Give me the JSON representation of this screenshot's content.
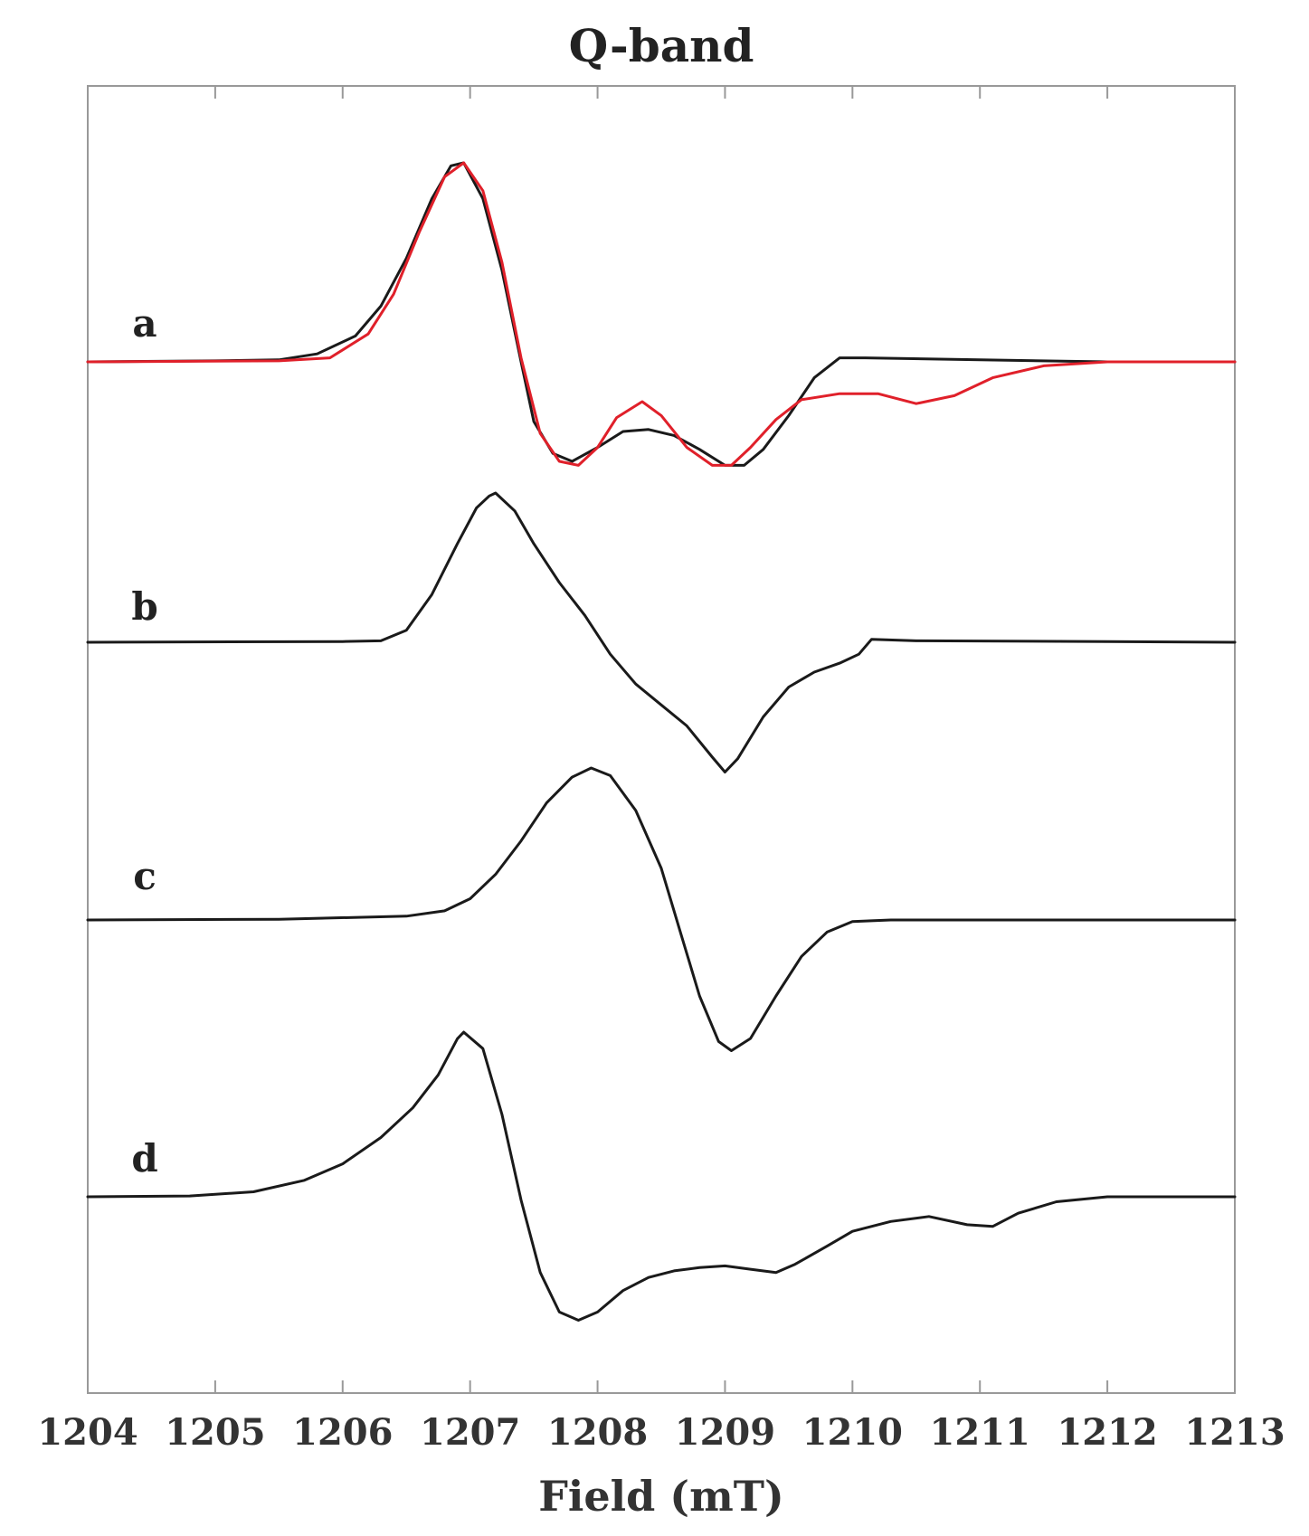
{
  "chart_data": {
    "type": "line",
    "title": "Q-band",
    "xlabel": "Field (mT)",
    "ylabel": "",
    "xlim": [
      1204,
      1213
    ],
    "x_ticks": [
      1204,
      1205,
      1206,
      1207,
      1208,
      1209,
      1210,
      1211,
      1212,
      1213
    ],
    "y_ticks_shown": false,
    "grid": false,
    "legend": "none",
    "colors": {
      "experimental": "#1a1a1a",
      "simulation": "#e0202a",
      "frame": "#999999"
    },
    "panels": [
      {
        "label": "a",
        "series": [
          {
            "color": "#1a1a1a",
            "points": [
              [
                1204.0,
                0
              ],
              [
                1205.0,
                0.005
              ],
              [
                1205.5,
                0.01
              ],
              [
                1205.8,
                0.04
              ],
              [
                1206.1,
                0.13
              ],
              [
                1206.3,
                0.28
              ],
              [
                1206.5,
                0.52
              ],
              [
                1206.7,
                0.82
              ],
              [
                1206.85,
                0.985
              ],
              [
                1206.95,
                1.0
              ],
              [
                1207.1,
                0.82
              ],
              [
                1207.25,
                0.46
              ],
              [
                1207.4,
                0.0
              ],
              [
                1207.5,
                -0.3
              ],
              [
                1207.65,
                -0.46
              ],
              [
                1207.8,
                -0.5
              ],
              [
                1208.0,
                -0.43
              ],
              [
                1208.2,
                -0.35
              ],
              [
                1208.4,
                -0.34
              ],
              [
                1208.6,
                -0.37
              ],
              [
                1208.8,
                -0.44
              ],
              [
                1209.0,
                -0.52
              ],
              [
                1209.15,
                -0.52
              ],
              [
                1209.3,
                -0.44
              ],
              [
                1209.5,
                -0.27
              ],
              [
                1209.7,
                -0.08
              ],
              [
                1209.9,
                0.02
              ],
              [
                1210.1,
                0.02
              ],
              [
                1211.0,
                0.01
              ],
              [
                1212.0,
                0.0
              ],
              [
                1213.0,
                0.0
              ]
            ]
          },
          {
            "color": "#e0202a",
            "points": [
              [
                1204.0,
                0
              ],
              [
                1205.5,
                0.005
              ],
              [
                1205.9,
                0.02
              ],
              [
                1206.2,
                0.14
              ],
              [
                1206.4,
                0.34
              ],
              [
                1206.6,
                0.65
              ],
              [
                1206.8,
                0.93
              ],
              [
                1206.95,
                1.0
              ],
              [
                1207.1,
                0.86
              ],
              [
                1207.25,
                0.5
              ],
              [
                1207.4,
                0.02
              ],
              [
                1207.55,
                -0.36
              ],
              [
                1207.7,
                -0.5
              ],
              [
                1207.85,
                -0.52
              ],
              [
                1208.0,
                -0.43
              ],
              [
                1208.15,
                -0.28
              ],
              [
                1208.35,
                -0.2
              ],
              [
                1208.5,
                -0.27
              ],
              [
                1208.7,
                -0.43
              ],
              [
                1208.9,
                -0.52
              ],
              [
                1209.05,
                -0.52
              ],
              [
                1209.2,
                -0.43
              ],
              [
                1209.4,
                -0.29
              ],
              [
                1209.6,
                -0.19
              ],
              [
                1209.9,
                -0.16
              ],
              [
                1210.2,
                -0.16
              ],
              [
                1210.5,
                -0.21
              ],
              [
                1210.8,
                -0.17
              ],
              [
                1211.1,
                -0.08
              ],
              [
                1211.5,
                -0.02
              ],
              [
                1212.0,
                0.0
              ],
              [
                1213.0,
                0.0
              ]
            ]
          }
        ]
      },
      {
        "label": "b",
        "series": [
          {
            "color": "#1a1a1a",
            "points": [
              [
                1204.0,
                0
              ],
              [
                1206.0,
                0.005
              ],
              [
                1206.3,
                0.01
              ],
              [
                1206.5,
                0.08
              ],
              [
                1206.7,
                0.32
              ],
              [
                1206.9,
                0.66
              ],
              [
                1207.05,
                0.9
              ],
              [
                1207.15,
                0.98
              ],
              [
                1207.2,
                1.0
              ],
              [
                1207.35,
                0.88
              ],
              [
                1207.5,
                0.66
              ],
              [
                1207.7,
                0.4
              ],
              [
                1207.9,
                0.18
              ],
              [
                1208.1,
                -0.08
              ],
              [
                1208.3,
                -0.28
              ],
              [
                1208.5,
                -0.42
              ],
              [
                1208.7,
                -0.56
              ],
              [
                1208.9,
                -0.77
              ],
              [
                1209.0,
                -0.87
              ],
              [
                1209.1,
                -0.78
              ],
              [
                1209.3,
                -0.5
              ],
              [
                1209.5,
                -0.3
              ],
              [
                1209.7,
                -0.2
              ],
              [
                1209.9,
                -0.14
              ],
              [
                1210.05,
                -0.08
              ],
              [
                1210.15,
                0.02
              ],
              [
                1210.5,
                0.01
              ],
              [
                1212.0,
                0.005
              ],
              [
                1213.0,
                0.0
              ]
            ]
          }
        ]
      },
      {
        "label": "c",
        "series": [
          {
            "color": "#1a1a1a",
            "points": [
              [
                1204.0,
                0
              ],
              [
                1205.5,
                0.005
              ],
              [
                1206.5,
                0.025
              ],
              [
                1206.8,
                0.06
              ],
              [
                1207.0,
                0.14
              ],
              [
                1207.2,
                0.3
              ],
              [
                1207.4,
                0.52
              ],
              [
                1207.6,
                0.77
              ],
              [
                1207.8,
                0.94
              ],
              [
                1207.95,
                1.0
              ],
              [
                1208.1,
                0.95
              ],
              [
                1208.3,
                0.72
              ],
              [
                1208.5,
                0.34
              ],
              [
                1208.65,
                -0.08
              ],
              [
                1208.8,
                -0.5
              ],
              [
                1208.95,
                -0.8
              ],
              [
                1209.05,
                -0.86
              ],
              [
                1209.2,
                -0.78
              ],
              [
                1209.4,
                -0.5
              ],
              [
                1209.6,
                -0.24
              ],
              [
                1209.8,
                -0.08
              ],
              [
                1210.0,
                -0.01
              ],
              [
                1210.3,
                0.0
              ],
              [
                1213.0,
                0.0
              ]
            ]
          }
        ]
      },
      {
        "label": "d",
        "series": [
          {
            "color": "#1a1a1a",
            "points": [
              [
                1204.0,
                0
              ],
              [
                1204.8,
                0.005
              ],
              [
                1205.3,
                0.03
              ],
              [
                1205.7,
                0.1
              ],
              [
                1206.0,
                0.2
              ],
              [
                1206.3,
                0.36
              ],
              [
                1206.55,
                0.54
              ],
              [
                1206.75,
                0.74
              ],
              [
                1206.9,
                0.96
              ],
              [
                1206.95,
                1.0
              ],
              [
                1207.1,
                0.9
              ],
              [
                1207.25,
                0.5
              ],
              [
                1207.4,
                -0.02
              ],
              [
                1207.55,
                -0.46
              ],
              [
                1207.7,
                -0.7
              ],
              [
                1207.85,
                -0.75
              ],
              [
                1208.0,
                -0.7
              ],
              [
                1208.2,
                -0.57
              ],
              [
                1208.4,
                -0.49
              ],
              [
                1208.6,
                -0.45
              ],
              [
                1208.8,
                -0.43
              ],
              [
                1209.0,
                -0.42
              ],
              [
                1209.2,
                -0.44
              ],
              [
                1209.4,
                -0.46
              ],
              [
                1209.55,
                -0.41
              ],
              [
                1209.8,
                -0.3
              ],
              [
                1210.0,
                -0.21
              ],
              [
                1210.3,
                -0.15
              ],
              [
                1210.6,
                -0.12
              ],
              [
                1210.9,
                -0.17
              ],
              [
                1211.1,
                -0.18
              ],
              [
                1211.3,
                -0.1
              ],
              [
                1211.6,
                -0.03
              ],
              [
                1212.0,
                0.0
              ],
              [
                1213.0,
                0.0
              ]
            ]
          }
        ]
      }
    ]
  }
}
